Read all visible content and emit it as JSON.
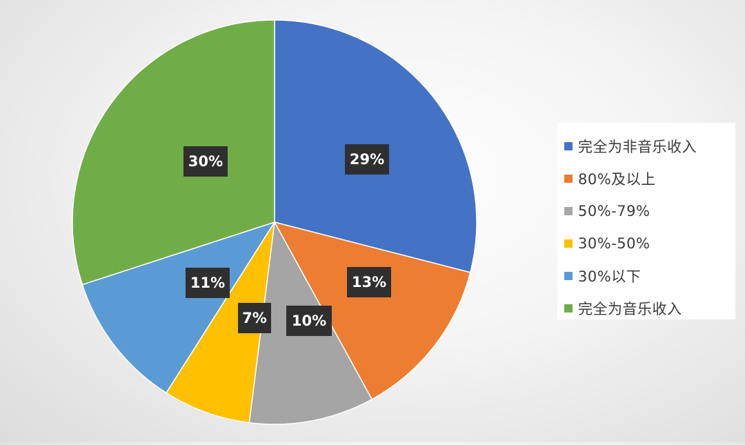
{
  "chart_data": {
    "type": "pie",
    "title": "",
    "legend_position": "right",
    "slices": [
      {
        "label": "完全为非音乐收入",
        "value": 29,
        "display": "29%",
        "color": "#4472c4"
      },
      {
        "label": "80%及以上",
        "value": 13,
        "display": "13%",
        "color": "#ed7d31"
      },
      {
        "label": "50%-79%",
        "value": 10,
        "display": "10%",
        "color": "#a5a5a5"
      },
      {
        "label": "30%-50%",
        "value": 7,
        "display": "7%",
        "color": "#ffc000"
      },
      {
        "label": "30%以下",
        "value": 11,
        "display": "11%",
        "color": "#5b9bd5"
      },
      {
        "label": "完全为音乐收入",
        "value": 30,
        "display": "30%",
        "color": "#70ad47"
      }
    ]
  }
}
